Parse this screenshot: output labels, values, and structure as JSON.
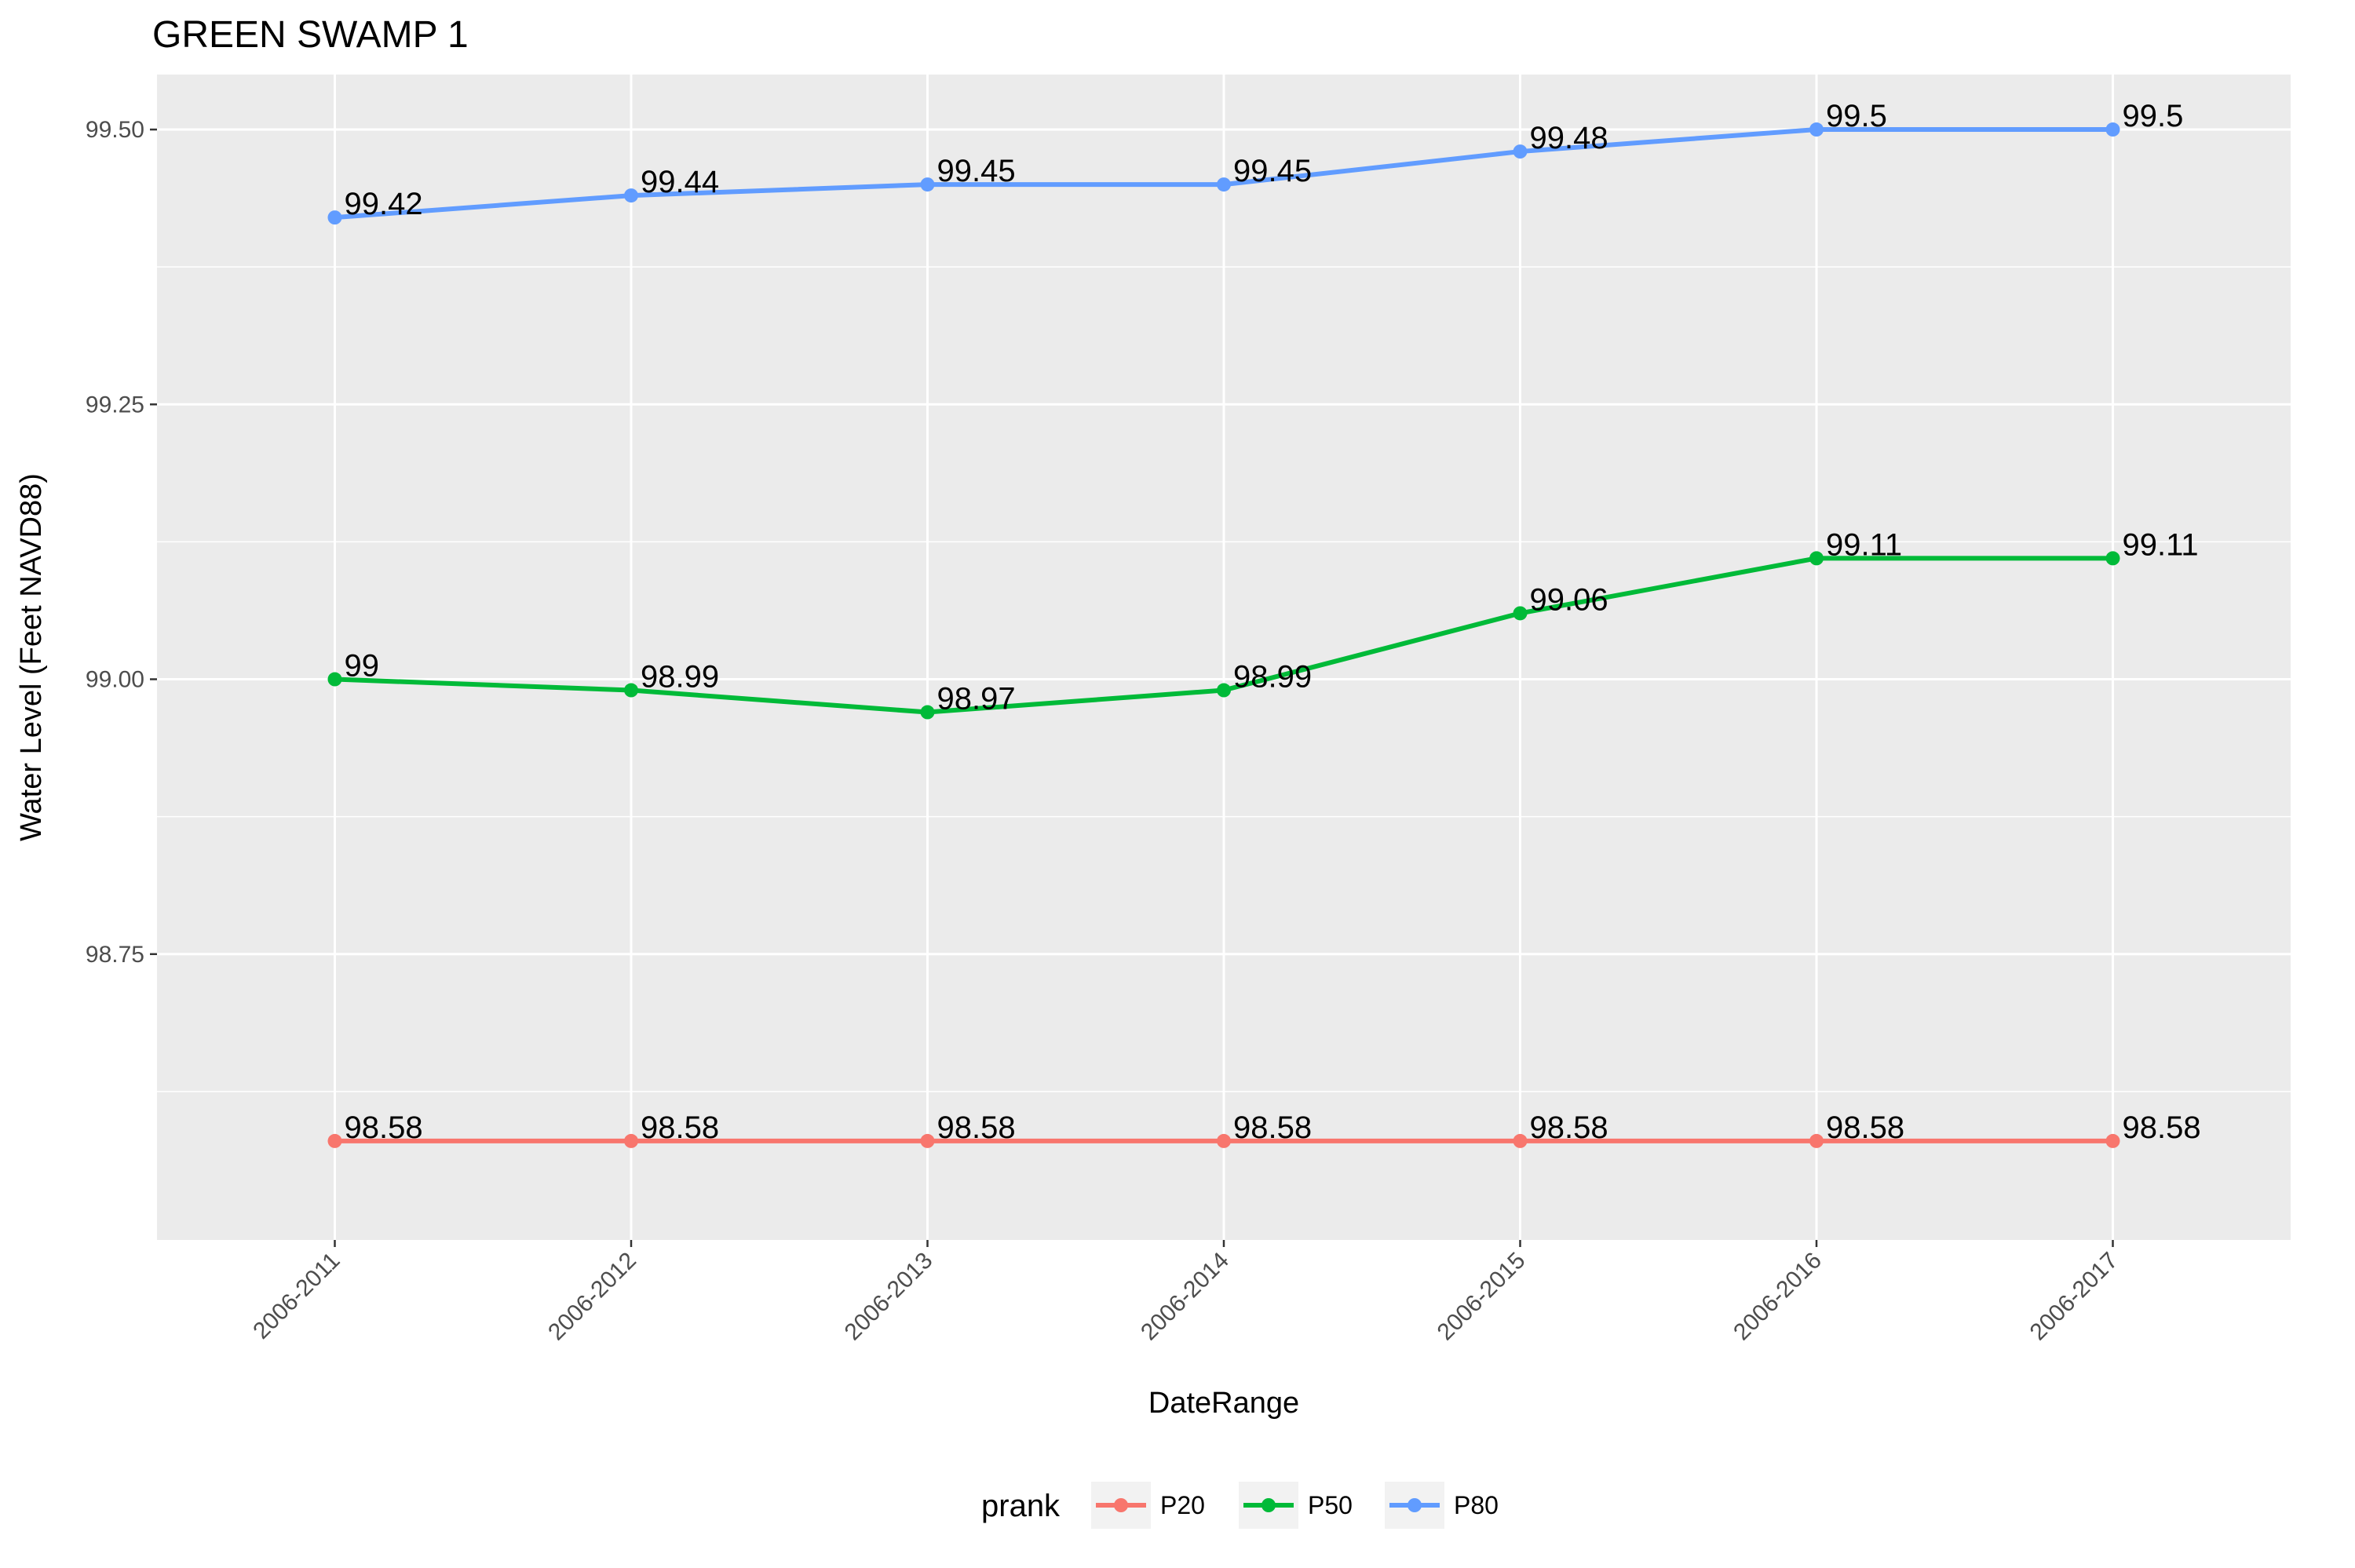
{
  "chart_data": {
    "type": "line",
    "title": "GREEN SWAMP 1",
    "xlabel": "DateRange",
    "ylabel": "Water Level (Feet NAVD88)",
    "categories": [
      "2006-2011",
      "2006-2012",
      "2006-2013",
      "2006-2014",
      "2006-2015",
      "2006-2016",
      "2006-2017"
    ],
    "ylim": [
      98.49,
      99.55
    ],
    "yticks": [
      98.75,
      99.0,
      99.25,
      99.5
    ],
    "ytick_labels": [
      "98.75",
      "99.00",
      "99.25",
      "99.50"
    ],
    "grid": true,
    "legend": {
      "title": "prank",
      "placement": "bottom"
    },
    "series": [
      {
        "name": "P20",
        "color": "#F8766D",
        "values": [
          98.58,
          98.58,
          98.58,
          98.58,
          98.58,
          98.58,
          98.58
        ],
        "labels": [
          "98.58",
          "98.58",
          "98.58",
          "98.58",
          "98.58",
          "98.58",
          "98.58"
        ]
      },
      {
        "name": "P50",
        "color": "#00BA38",
        "values": [
          99.0,
          98.99,
          98.97,
          98.99,
          99.06,
          99.11,
          99.11
        ],
        "labels": [
          "99",
          "98.99",
          "98.97",
          "98.99",
          "99.06",
          "99.11",
          "99.11"
        ]
      },
      {
        "name": "P80",
        "color": "#619CFF",
        "values": [
          99.42,
          99.44,
          99.45,
          99.45,
          99.48,
          99.5,
          99.5
        ],
        "labels": [
          "99.42",
          "99.44",
          "99.45",
          "99.45",
          "99.48",
          "99.5",
          "99.5"
        ]
      }
    ]
  }
}
